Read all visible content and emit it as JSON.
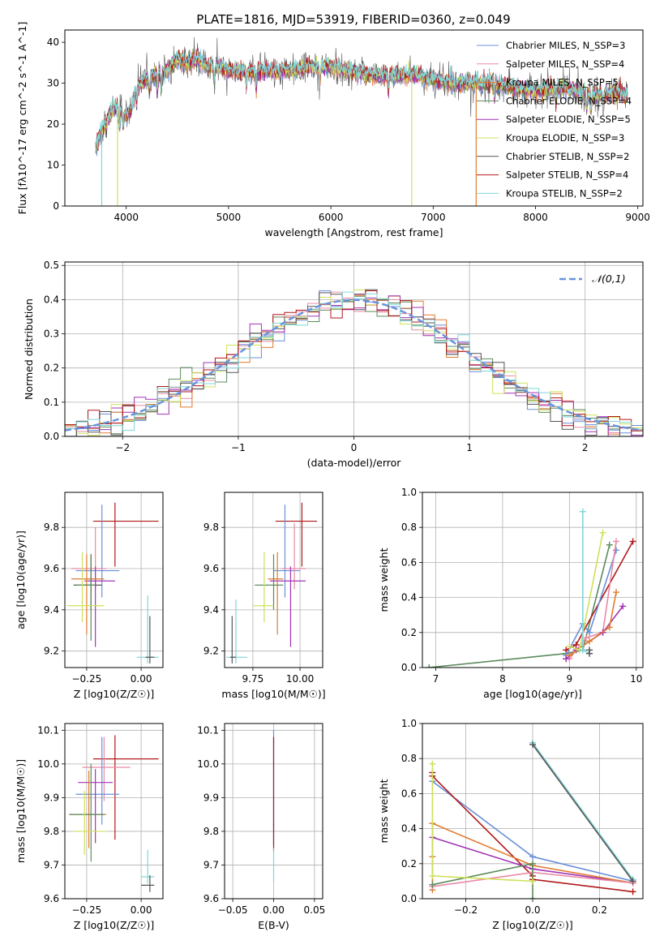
{
  "page": {
    "title": "PLATE=1816, MJD=53919, FIBERID=0360, z=0.049"
  },
  "chart_data": [
    {
      "id": "spectrum",
      "type": "line",
      "xlabel": "wavelength [Angstrom, rest frame]",
      "ylabel": "Flux [fλ10^-17 erg cm^-2 s^-1 A^-1]",
      "xlim": [
        3400,
        9050
      ],
      "ylim": [
        0,
        43
      ],
      "xticks": [
        4000,
        5000,
        6000,
        7000,
        8000,
        9000
      ],
      "yticks": [
        0,
        10,
        20,
        30,
        40
      ],
      "grid": false,
      "legend": "top-right",
      "series": [
        {
          "name": "Chabrier MILES, N_SSP=3",
          "color": "#6b8fd9"
        },
        {
          "name": "Salpeter MILES, N_SSP=4",
          "color": "#e88aa6"
        },
        {
          "name": "Kroupa MILES, N_SSP=5",
          "color": "#e07b2e"
        },
        {
          "name": "Chabrier ELODIE, N_SSP=4",
          "color": "#5c8a5c"
        },
        {
          "name": "Salpeter ELODIE, N_SSP=5",
          "color": "#a134b5"
        },
        {
          "name": "Kroupa ELODIE, N_SSP=3",
          "color": "#cfe05a"
        },
        {
          "name": "Chabrier STELIB, N_SSP=2",
          "color": "#555555"
        },
        {
          "name": "Salpeter STELIB, N_SSP=4",
          "color": "#b01818"
        },
        {
          "name": "Kroupa STELIB, N_SSP=2",
          "color": "#7fd6d8"
        }
      ],
      "continuum": {
        "x": [
          3700,
          3750,
          3800,
          3850,
          3900,
          3950,
          4000,
          4050,
          4100,
          4200,
          4300,
          4400,
          4500,
          4600,
          4700,
          4800,
          4900,
          5000,
          5200,
          5400,
          5600,
          5800,
          6000,
          6200,
          6400,
          6600,
          6800,
          7000,
          7200,
          7400,
          7600,
          7800,
          8000,
          8200,
          8400,
          8600,
          8800,
          9000
        ],
        "y": [
          14,
          18,
          20,
          23,
          24,
          23,
          22,
          24,
          29,
          31,
          32,
          33,
          36,
          35,
          36,
          34,
          34,
          33,
          33,
          33,
          33,
          34,
          34,
          33,
          32,
          32,
          32,
          31,
          30,
          30,
          30,
          29,
          28,
          29,
          28,
          27,
          28,
          26
        ]
      }
    },
    {
      "id": "residuals",
      "type": "step",
      "xlabel": "(data-model)/error",
      "ylabel": "Normed distribution",
      "xlim": [
        -2.5,
        2.5
      ],
      "ylim": [
        0,
        0.51
      ],
      "xticks": [
        -2,
        -1,
        0,
        1,
        2
      ],
      "yticks": [
        0.0,
        0.1,
        0.2,
        0.3,
        0.4,
        0.5
      ],
      "grid": true,
      "legend": "top-right",
      "reference": {
        "name": "𝒩(0,1)",
        "color": "#6a93db"
      }
    },
    {
      "id": "age-vs-Z",
      "type": "errorbar",
      "xlabel": "Z [log10(Z/Z☉)]",
      "ylabel": "age  [log10(age/yr)]",
      "xlim": [
        -0.35,
        0.1
      ],
      "ylim": [
        9.12,
        9.97
      ],
      "xticks": [
        -0.25,
        0.0
      ],
      "yticks": [
        9.2,
        9.4,
        9.6,
        9.8
      ],
      "grid": true
    },
    {
      "id": "age-vs-mass",
      "type": "errorbar",
      "xlabel": "mass [log10(M/M☉)]",
      "ylabel": "",
      "xlim": [
        9.6,
        10.12
      ],
      "ylim": [
        9.12,
        9.97
      ],
      "xticks": [
        9.75,
        10.0
      ],
      "yticks": [
        9.2,
        9.4,
        9.6,
        9.8
      ],
      "grid": true
    },
    {
      "id": "weight-vs-age",
      "type": "line",
      "xlabel": "age  [log10(age/yr)]",
      "ylabel": "mass weight",
      "xlim": [
        6.8,
        10.1
      ],
      "ylim": [
        0,
        1.0
      ],
      "xticks": [
        7,
        8,
        9,
        10
      ],
      "yticks": [
        0.0,
        0.2,
        0.4,
        0.6,
        0.8,
        1.0
      ],
      "grid": true
    },
    {
      "id": "mass-vs-Z",
      "type": "errorbar",
      "xlabel": "Z [log10(Z/Z☉)]",
      "ylabel": "mass [log10(M/M☉)]",
      "xlim": [
        -0.35,
        0.1
      ],
      "ylim": [
        9.6,
        10.12
      ],
      "xticks": [
        -0.25,
        0.0
      ],
      "yticks": [
        9.6,
        9.7,
        9.8,
        9.9,
        10.0,
        10.1
      ],
      "grid": true
    },
    {
      "id": "mass-vs-ebv",
      "type": "errorbar",
      "xlabel": "E(B-V)",
      "ylabel": "",
      "xlim": [
        -0.06,
        0.06
      ],
      "ylim": [
        9.6,
        10.12
      ],
      "xticks": [
        -0.05,
        0.0,
        0.05
      ],
      "yticks": [
        9.6,
        9.7,
        9.8,
        9.9,
        10.0,
        10.1
      ],
      "grid": true
    },
    {
      "id": "weight-vs-Z",
      "type": "line",
      "xlabel": "Z [log10(Z/Z☉)]",
      "ylabel": "mass weight",
      "xlim": [
        -0.33,
        0.33
      ],
      "ylim": [
        0,
        1.0
      ],
      "xticks": [
        -0.2,
        0.0,
        0.2
      ],
      "yticks": [
        0.0,
        0.2,
        0.4,
        0.6,
        0.8,
        1.0
      ],
      "grid": true
    }
  ]
}
